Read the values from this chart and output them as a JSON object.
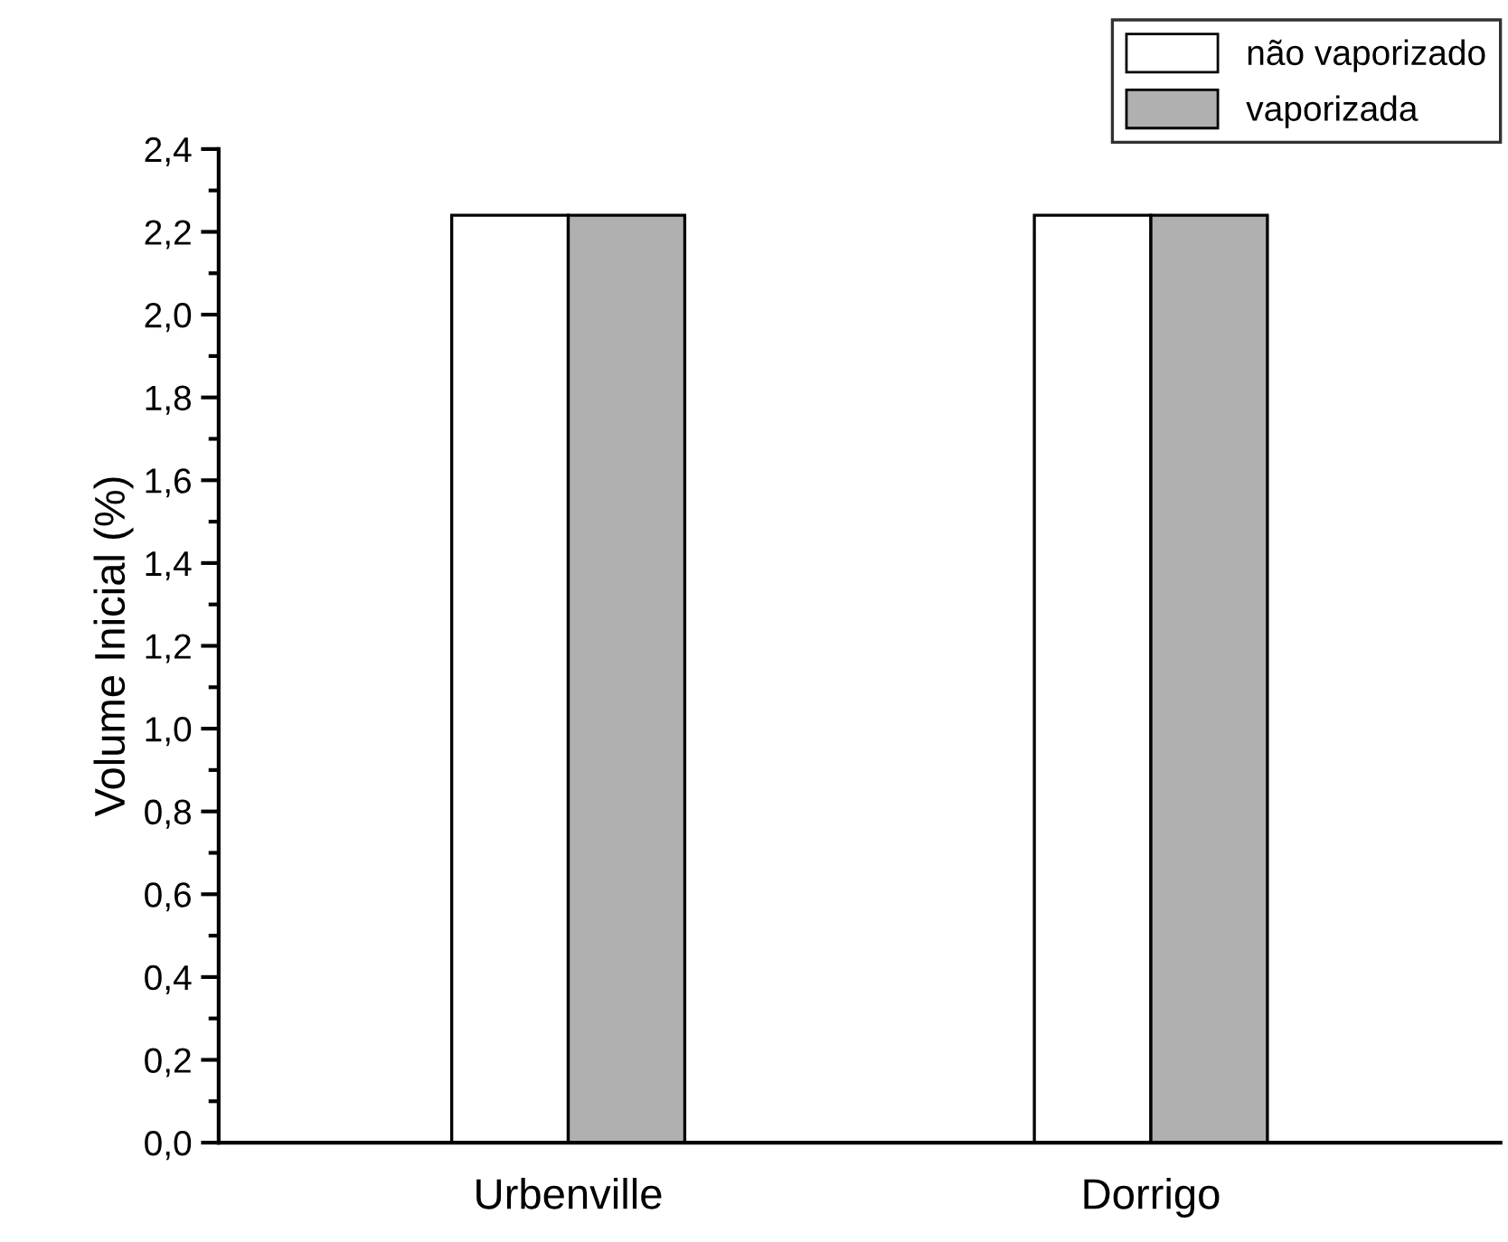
{
  "chart_data": {
    "type": "bar",
    "ylabel": "Volume Inicial (%)",
    "categories": [
      "Urbenville",
      "Dorrigo"
    ],
    "series": [
      {
        "name": "não vaporizado",
        "color": "#ffffff",
        "values": [
          2.24,
          2.24
        ]
      },
      {
        "name": "vaporizada",
        "color": "#b0b0b0",
        "values": [
          2.24,
          2.24
        ]
      }
    ],
    "ylim": [
      0,
      2.4
    ],
    "yticks": [
      {
        "value": 0,
        "label": "0,0"
      },
      {
        "value": 0.2,
        "label": "0,2"
      },
      {
        "value": 0.4,
        "label": "0,4"
      },
      {
        "value": 0.6,
        "label": "0,6"
      },
      {
        "value": 0.8,
        "label": "0,8"
      },
      {
        "value": 1.0,
        "label": "1,0"
      },
      {
        "value": 1.2,
        "label": "1,2"
      },
      {
        "value": 1.4,
        "label": "1,4"
      },
      {
        "value": 1.6,
        "label": "1,6"
      },
      {
        "value": 1.8,
        "label": "1,8"
      },
      {
        "value": 2.0,
        "label": "2,0"
      },
      {
        "value": 2.2,
        "label": "2,2"
      },
      {
        "value": 2.4,
        "label": "2,4"
      }
    ],
    "grid": false,
    "legend": "top right"
  }
}
